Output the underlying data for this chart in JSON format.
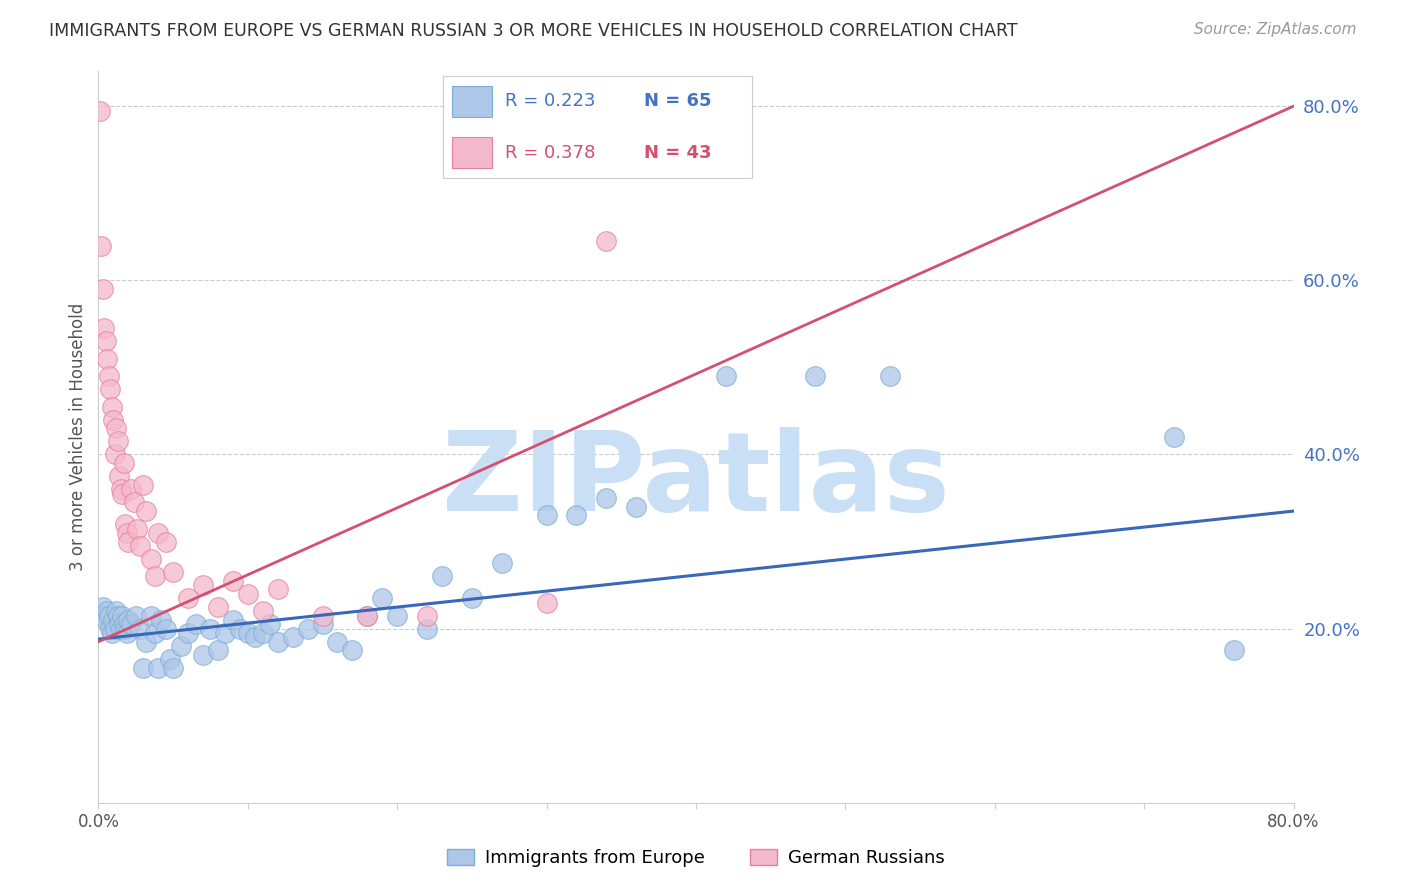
{
  "title": "IMMIGRANTS FROM EUROPE VS GERMAN RUSSIAN 3 OR MORE VEHICLES IN HOUSEHOLD CORRELATION CHART",
  "source_text": "Source: ZipAtlas.com",
  "ylabel": "3 or more Vehicles in Household",
  "xlim": [
    0.0,
    0.8
  ],
  "ylim": [
    0.0,
    0.84
  ],
  "x_ticks": [
    0.0,
    0.1,
    0.2,
    0.3,
    0.4,
    0.5,
    0.6,
    0.7,
    0.8
  ],
  "x_tick_labels": [
    "0.0%",
    "",
    "",
    "",
    "",
    "",
    "",
    "",
    "80.0%"
  ],
  "y_ticks_right": [
    0.2,
    0.4,
    0.6,
    0.8
  ],
  "y_tick_labels_right": [
    "20.0%",
    "40.0%",
    "60.0%",
    "80.0%"
  ],
  "grid_color": "#cccccc",
  "background_color": "#ffffff",
  "series1_color": "#aec6e8",
  "series1_edge": "#7aafd4",
  "series2_color": "#f4b8cc",
  "series2_edge": "#e8809a",
  "trendline1_color": "#3a68b8",
  "trendline2_color": "#d45070",
  "legend_R1": "R = 0.223",
  "legend_N1": "N = 65",
  "legend_R2": "R = 0.378",
  "legend_N2": "N = 43",
  "watermark": "ZIPatlas",
  "watermark_color": "#c8dff5",
  "blue_scatter_x": [
    0.003,
    0.004,
    0.005,
    0.006,
    0.007,
    0.008,
    0.009,
    0.01,
    0.011,
    0.012,
    0.013,
    0.014,
    0.015,
    0.016,
    0.017,
    0.018,
    0.019,
    0.02,
    0.022,
    0.025,
    0.028,
    0.03,
    0.032,
    0.035,
    0.038,
    0.04,
    0.042,
    0.045,
    0.048,
    0.05,
    0.055,
    0.06,
    0.065,
    0.07,
    0.075,
    0.08,
    0.085,
    0.09,
    0.095,
    0.1,
    0.105,
    0.11,
    0.115,
    0.12,
    0.13,
    0.14,
    0.15,
    0.16,
    0.17,
    0.18,
    0.19,
    0.2,
    0.22,
    0.23,
    0.25,
    0.27,
    0.3,
    0.32,
    0.34,
    0.36,
    0.42,
    0.48,
    0.53,
    0.72,
    0.76
  ],
  "blue_scatter_y": [
    0.225,
    0.215,
    0.21,
    0.22,
    0.215,
    0.2,
    0.195,
    0.21,
    0.2,
    0.22,
    0.215,
    0.205,
    0.2,
    0.215,
    0.205,
    0.2,
    0.195,
    0.21,
    0.205,
    0.215,
    0.2,
    0.155,
    0.185,
    0.215,
    0.195,
    0.155,
    0.21,
    0.2,
    0.165,
    0.155,
    0.18,
    0.195,
    0.205,
    0.17,
    0.2,
    0.175,
    0.195,
    0.21,
    0.2,
    0.195,
    0.19,
    0.195,
    0.205,
    0.185,
    0.19,
    0.2,
    0.205,
    0.185,
    0.175,
    0.215,
    0.235,
    0.215,
    0.2,
    0.26,
    0.235,
    0.275,
    0.33,
    0.33,
    0.35,
    0.34,
    0.49,
    0.49,
    0.49,
    0.42,
    0.175
  ],
  "pink_scatter_x": [
    0.001,
    0.002,
    0.003,
    0.004,
    0.005,
    0.006,
    0.007,
    0.008,
    0.009,
    0.01,
    0.011,
    0.012,
    0.013,
    0.014,
    0.015,
    0.016,
    0.017,
    0.018,
    0.019,
    0.02,
    0.022,
    0.024,
    0.026,
    0.028,
    0.03,
    0.032,
    0.035,
    0.038,
    0.04,
    0.045,
    0.05,
    0.06,
    0.07,
    0.08,
    0.09,
    0.1,
    0.11,
    0.12,
    0.15,
    0.18,
    0.22,
    0.3,
    0.34
  ],
  "pink_scatter_y": [
    0.795,
    0.64,
    0.59,
    0.545,
    0.53,
    0.51,
    0.49,
    0.475,
    0.455,
    0.44,
    0.4,
    0.43,
    0.415,
    0.375,
    0.36,
    0.355,
    0.39,
    0.32,
    0.31,
    0.3,
    0.36,
    0.345,
    0.315,
    0.295,
    0.365,
    0.335,
    0.28,
    0.26,
    0.31,
    0.3,
    0.265,
    0.235,
    0.25,
    0.225,
    0.255,
    0.24,
    0.22,
    0.245,
    0.215,
    0.215,
    0.215,
    0.23,
    0.645
  ],
  "trendline1_x": [
    0.0,
    0.8
  ],
  "trendline1_y": [
    0.188,
    0.335
  ],
  "trendline2_x": [
    0.0,
    0.8
  ],
  "trendline2_y": [
    0.185,
    0.8
  ]
}
